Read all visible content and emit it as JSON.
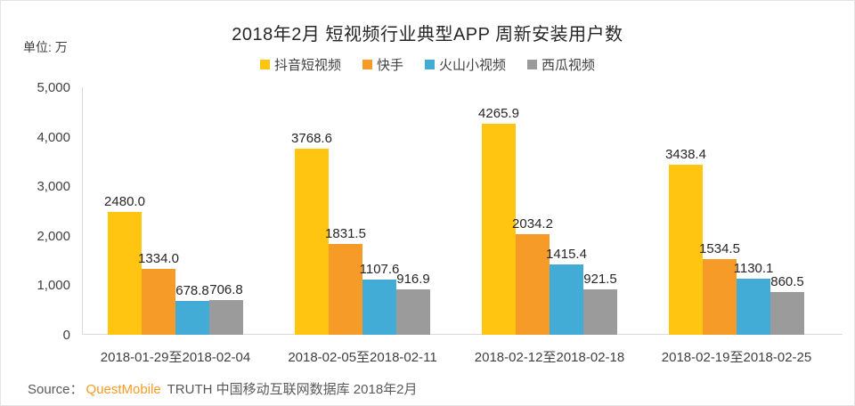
{
  "title": "2018年2月 短视频行业典型APP 周新安装用户数",
  "unit_label": "单位: 万",
  "source": {
    "prefix": "Source：",
    "brand": "QuestMobile",
    "suffix": " TRUTH 中国移动互联网数据库 2018年2月"
  },
  "colors": {
    "douyin_yellow": "#ffc510",
    "kuaishou_orange": "#f79b28",
    "huoshan_blue": "#42acd6",
    "xigua_gray": "#9b9b9b",
    "axis_line": "#d9d9d9",
    "axis_text": "#3f3f3f",
    "brand_orange": "#f79b28"
  },
  "chart_data": {
    "type": "bar",
    "title": "2018年2月 短视频行业典型APP 周新安装用户数",
    "unit": "万",
    "grid": false,
    "legend_position": "top",
    "ylim": [
      0,
      5000
    ],
    "ytick_step": 1000,
    "ytick_labels": [
      "0",
      "1,000",
      "2,000",
      "3,000",
      "4,000",
      "5,000"
    ],
    "categories": [
      "2018-01-29至2018-02-04",
      "2018-02-05至2018-02-11",
      "2018-02-12至2018-02-18",
      "2018-02-19至2018-02-25"
    ],
    "series": [
      {
        "key": "douyin",
        "name": "抖音短视频",
        "color": "#ffc510",
        "values": [
          2480.0,
          3768.6,
          4265.9,
          3438.4
        ]
      },
      {
        "key": "kuaishou",
        "name": "快手",
        "color": "#f79b28",
        "values": [
          1334.0,
          1831.5,
          2034.2,
          1534.5
        ]
      },
      {
        "key": "huoshan",
        "name": "火山小视频",
        "color": "#42acd6",
        "values": [
          678.8,
          1107.6,
          1415.4,
          1130.1
        ]
      },
      {
        "key": "xigua",
        "name": "西瓜视频",
        "color": "#9b9b9b",
        "values": [
          706.8,
          916.9,
          921.5,
          860.5
        ]
      }
    ]
  }
}
